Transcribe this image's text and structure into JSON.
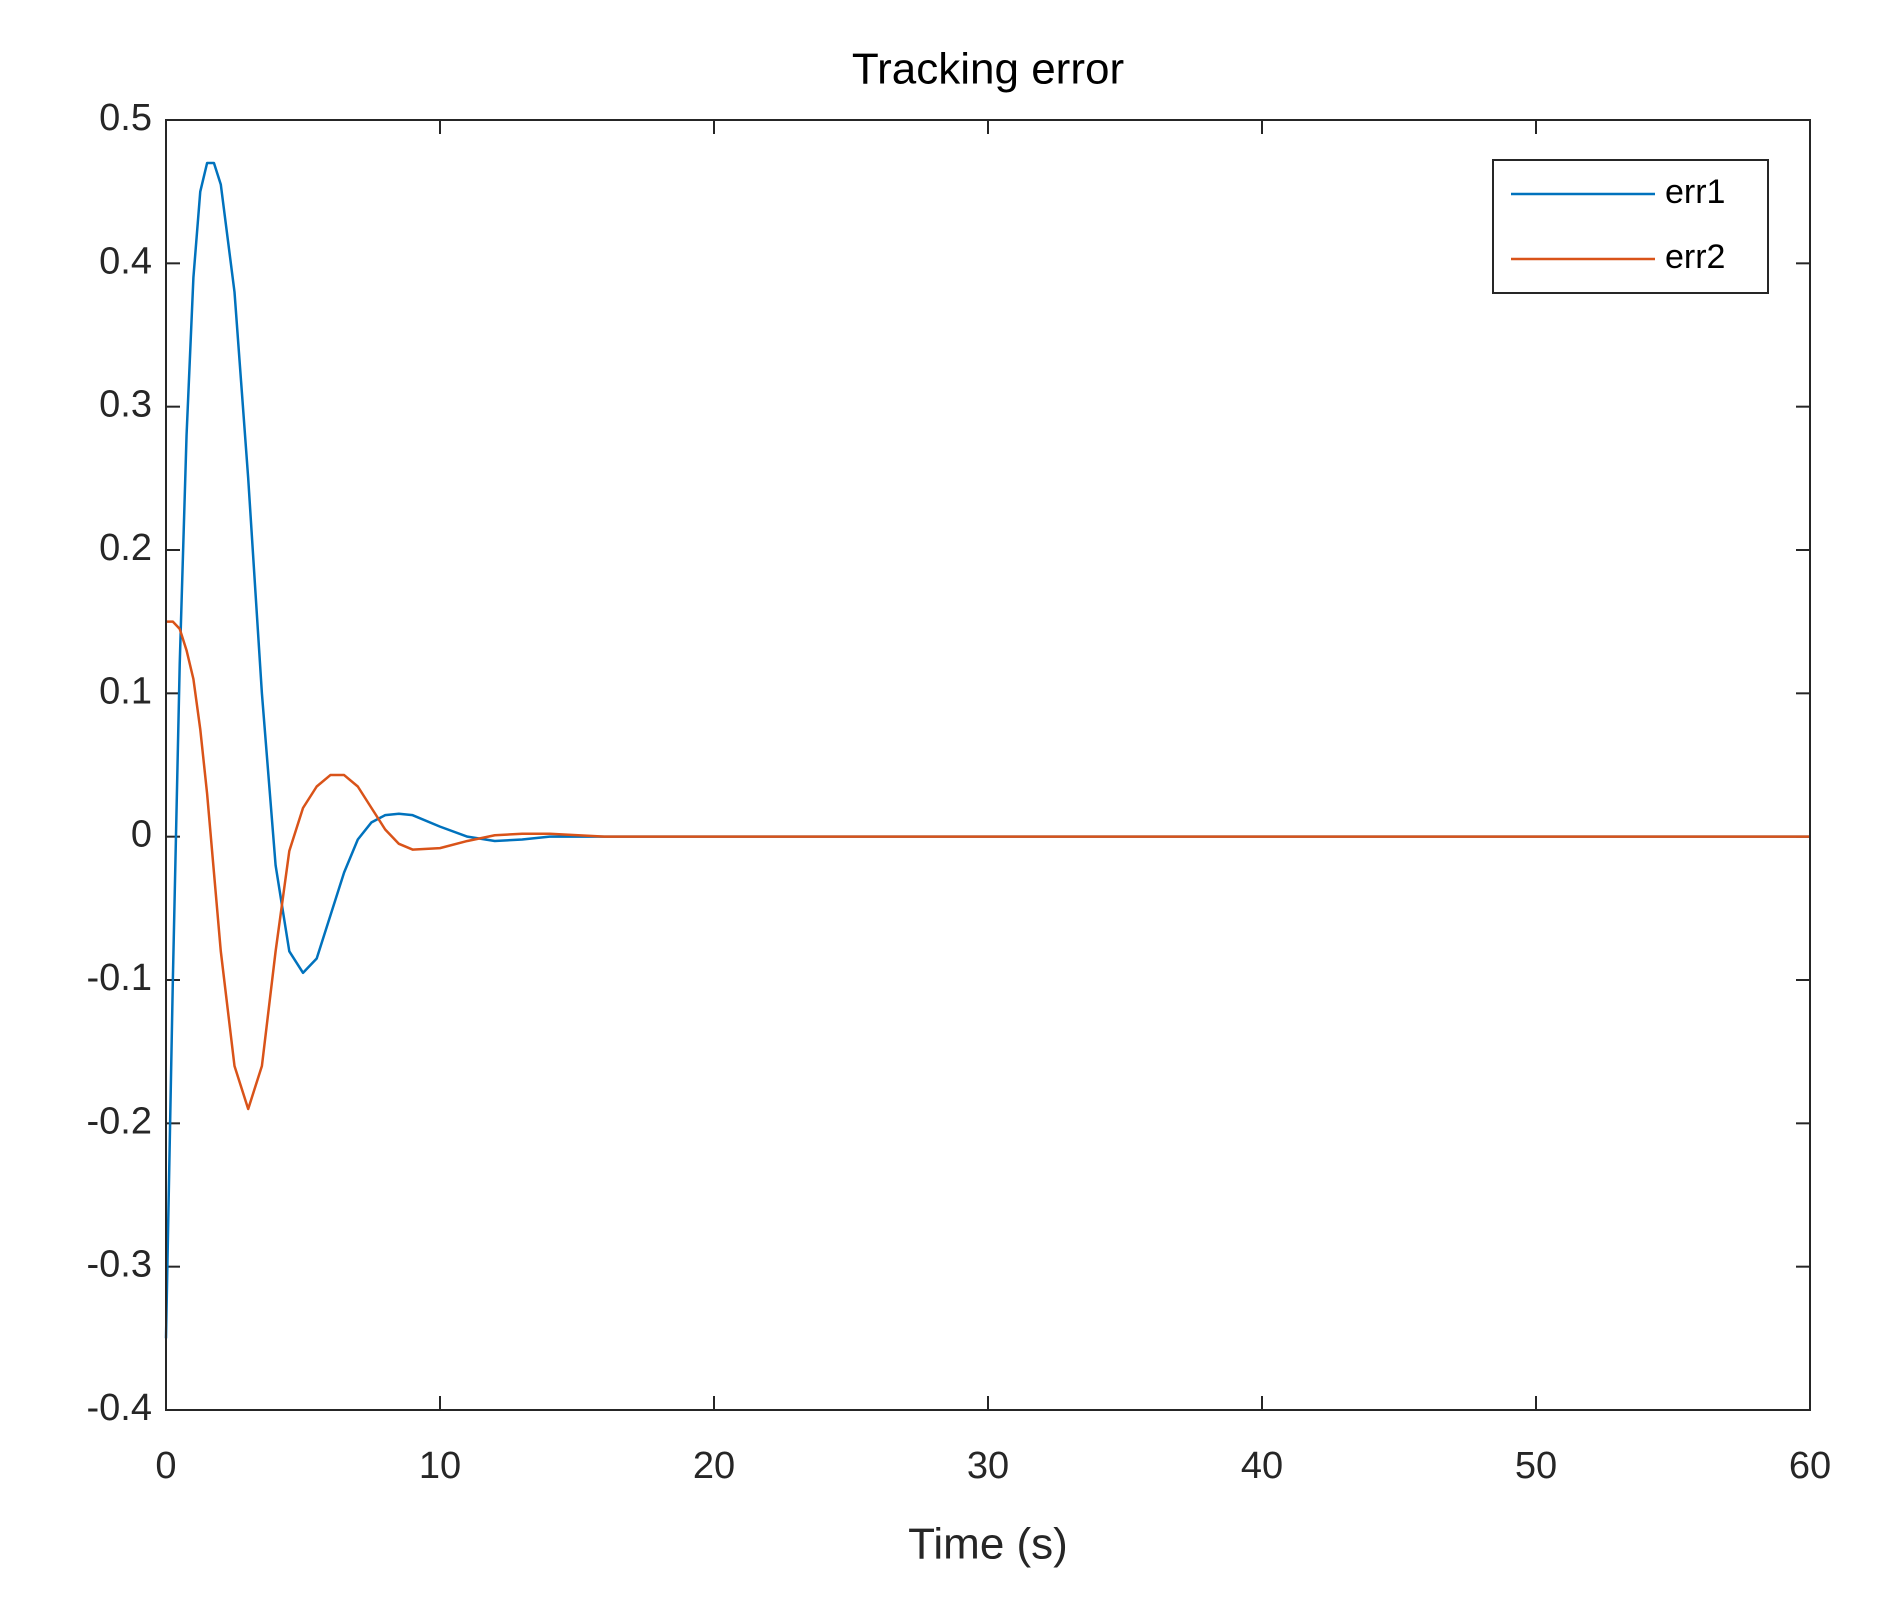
{
  "chart_data": {
    "type": "line",
    "title": "Tracking error",
    "xlabel": "Time (s)",
    "x": [
      0,
      0.25,
      0.5,
      0.75,
      1,
      1.25,
      1.5,
      1.75,
      2,
      2.5,
      3,
      3.5,
      4,
      4.5,
      5,
      5.5,
      6,
      6.5,
      7,
      7.5,
      8,
      8.5,
      9,
      10,
      11,
      12,
      13,
      14,
      16,
      20,
      60
    ],
    "series": [
      {
        "name": "err1",
        "color": "#0072BD",
        "values": [
          -0.35,
          -0.1,
          0.12,
          0.28,
          0.39,
          0.45,
          0.47,
          0.47,
          0.455,
          0.38,
          0.25,
          0.1,
          -0.02,
          -0.08,
          -0.095,
          -0.085,
          -0.055,
          -0.025,
          -0.002,
          0.01,
          0.015,
          0.016,
          0.015,
          0.007,
          0,
          -0.003,
          -0.002,
          0,
          0,
          0,
          0
        ]
      },
      {
        "name": "err2",
        "color": "#D95319",
        "values": [
          0.15,
          0.15,
          0.145,
          0.13,
          0.11,
          0.075,
          0.03,
          -0.025,
          -0.08,
          -0.16,
          -0.19,
          -0.16,
          -0.08,
          -0.01,
          0.02,
          0.035,
          0.043,
          0.043,
          0.035,
          0.02,
          0.005,
          -0.005,
          -0.009,
          -0.008,
          -0.003,
          0.001,
          0.002,
          0.002,
          0,
          0,
          0
        ]
      }
    ],
    "xlim": [
      0,
      60
    ],
    "xticks": [
      0,
      10,
      20,
      30,
      40,
      50,
      60
    ],
    "ylim": [
      -0.4,
      0.5
    ],
    "yticks": [
      -0.4,
      -0.3,
      -0.2,
      -0.1,
      0,
      0.1,
      0.2,
      0.3,
      0.4,
      0.5
    ],
    "grid": false,
    "legend": "northeast"
  }
}
